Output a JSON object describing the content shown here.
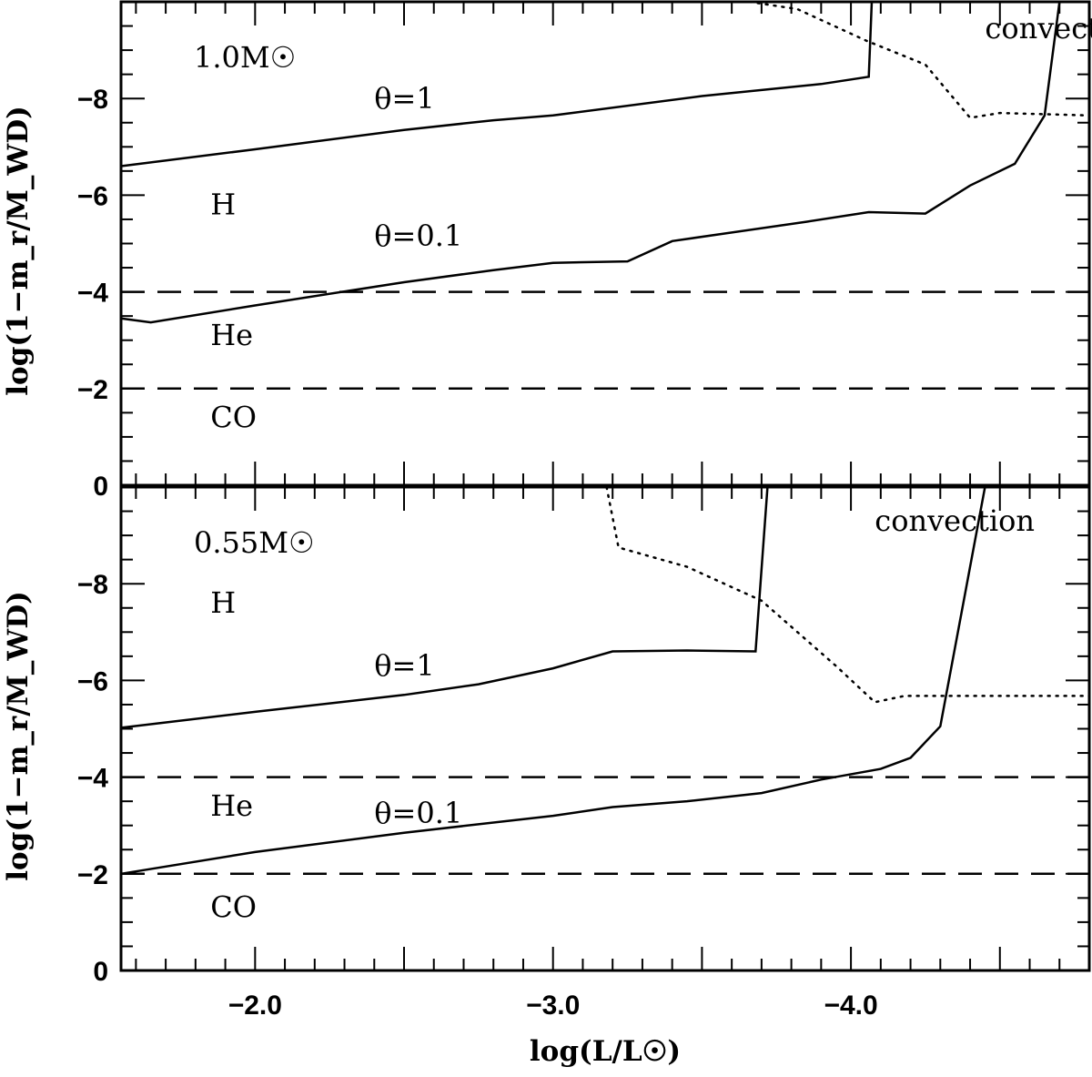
{
  "chart_data": {
    "type": "line",
    "xlabel": "log(L/L☉)",
    "x_tick_labels": [
      "−2.0",
      "−3.0",
      "−4.0"
    ],
    "x_ticks": [
      -2.0,
      -3.0,
      -4.0
    ],
    "xlim": [
      -1.55,
      -4.8
    ],
    "panels": [
      {
        "id": "top",
        "mass_label": "1.0M☉",
        "ylabel": "log(1−m_r/M_WD)",
        "ylim": [
          0,
          -10
        ],
        "y_ticks": [
          0,
          -2,
          -4,
          -6,
          -8
        ],
        "y_tick_labels": [
          "0",
          "−2",
          "−4",
          "−6",
          "−8"
        ],
        "region_labels": [
          {
            "text": "H",
            "x": -1.85,
            "y": -5.6
          },
          {
            "text": "He",
            "x": -1.85,
            "y": -2.9
          },
          {
            "text": "CO",
            "x": -1.85,
            "y": -1.2
          }
        ],
        "boundaries": [
          {
            "name": "H/He boundary",
            "y": -4
          },
          {
            "name": "He/CO boundary",
            "y": -2
          }
        ],
        "series": [
          {
            "name": "θ=1",
            "label": "θ=1",
            "label_pos": {
              "x": -2.4,
              "y": -7.8
            },
            "style": "solid",
            "points": [
              [
                -1.55,
                -6.6
              ],
              [
                -2.0,
                -6.95
              ],
              [
                -2.5,
                -7.35
              ],
              [
                -2.8,
                -7.55
              ],
              [
                -3.0,
                -7.65
              ],
              [
                -3.5,
                -8.05
              ],
              [
                -3.9,
                -8.3
              ],
              [
                -4.06,
                -8.45
              ],
              [
                -4.07,
                -10.0
              ]
            ]
          },
          {
            "name": "θ=0.1",
            "label": "θ=0.1",
            "label_pos": {
              "x": -2.4,
              "y": -4.95
            },
            "style": "solid",
            "points": [
              [
                -1.55,
                -3.45
              ],
              [
                -1.65,
                -3.37
              ],
              [
                -2.0,
                -3.72
              ],
              [
                -2.5,
                -4.2
              ],
              [
                -2.8,
                -4.45
              ],
              [
                -3.0,
                -4.6
              ],
              [
                -3.25,
                -4.63
              ],
              [
                -3.4,
                -5.05
              ],
              [
                -3.85,
                -5.45
              ],
              [
                -4.06,
                -5.65
              ],
              [
                -4.25,
                -5.62
              ],
              [
                -4.4,
                -6.2
              ],
              [
                -4.55,
                -6.65
              ],
              [
                -4.65,
                -7.65
              ],
              [
                -4.7,
                -10.0
              ]
            ]
          },
          {
            "name": "convection",
            "label": "convection",
            "label_pos": {
              "x": -4.45,
              "y": -9.25
            },
            "style": "dotted",
            "points": [
              [
                -3.66,
                -10.0
              ],
              [
                -3.82,
                -9.85
              ],
              [
                -4.05,
                -9.2
              ],
              [
                -4.25,
                -8.7
              ],
              [
                -4.4,
                -7.6
              ],
              [
                -4.5,
                -7.7
              ],
              [
                -4.8,
                -7.65
              ]
            ]
          }
        ]
      },
      {
        "id": "bottom",
        "mass_label": "0.55M☉",
        "ylabel": "log(1−m_r/M_WD)",
        "ylim": [
          0,
          -10
        ],
        "y_ticks": [
          0,
          -2,
          -4,
          -6,
          -8
        ],
        "y_tick_labels": [
          "0",
          "−2",
          "−4",
          "−6",
          "−8"
        ],
        "region_labels": [
          {
            "text": "H",
            "x": -1.85,
            "y": -7.4
          },
          {
            "text": "He",
            "x": -1.85,
            "y": -3.2
          },
          {
            "text": "CO",
            "x": -1.85,
            "y": -1.1
          }
        ],
        "boundaries": [
          {
            "name": "H/He boundary",
            "y": -4
          },
          {
            "name": "He/CO boundary",
            "y": -2
          }
        ],
        "series": [
          {
            "name": "θ=1",
            "label": "θ=1",
            "label_pos": {
              "x": -2.4,
              "y": -6.1
            },
            "style": "solid",
            "points": [
              [
                -1.55,
                -5.02
              ],
              [
                -2.0,
                -5.35
              ],
              [
                -2.5,
                -5.7
              ],
              [
                -2.75,
                -5.92
              ],
              [
                -3.0,
                -6.25
              ],
              [
                -3.2,
                -6.6
              ],
              [
                -3.45,
                -6.62
              ],
              [
                -3.68,
                -6.6
              ],
              [
                -3.72,
                -10.0
              ]
            ]
          },
          {
            "name": "θ=0.1",
            "label": "θ=0.1",
            "label_pos": {
              "x": -2.4,
              "y": -3.05
            },
            "style": "solid",
            "points": [
              [
                -1.55,
                -2.0
              ],
              [
                -2.0,
                -2.45
              ],
              [
                -2.5,
                -2.85
              ],
              [
                -3.0,
                -3.2
              ],
              [
                -3.2,
                -3.38
              ],
              [
                -3.45,
                -3.5
              ],
              [
                -3.7,
                -3.67
              ],
              [
                -3.9,
                -3.95
              ],
              [
                -4.1,
                -4.17
              ],
              [
                -4.2,
                -4.4
              ],
              [
                -4.3,
                -5.05
              ],
              [
                -4.45,
                -10.0
              ]
            ]
          },
          {
            "name": "convection",
            "label": "convection",
            "label_pos": {
              "x": -4.08,
              "y": -9.1
            },
            "style": "dotted",
            "points": [
              [
                -3.18,
                -10.0
              ],
              [
                -3.22,
                -8.75
              ],
              [
                -3.45,
                -8.35
              ],
              [
                -3.7,
                -7.65
              ],
              [
                -3.95,
                -6.3
              ],
              [
                -4.08,
                -5.55
              ],
              [
                -4.18,
                -5.68
              ],
              [
                -4.8,
                -5.68
              ]
            ]
          }
        ]
      }
    ]
  }
}
